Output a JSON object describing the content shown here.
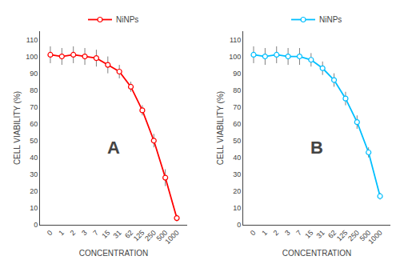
{
  "chart_data": [
    {
      "type": "line",
      "categories": [
        "0",
        "1",
        "2",
        "3",
        "7",
        "15",
        "31",
        "62",
        "125",
        "250",
        "500",
        "1000"
      ],
      "series": [
        {
          "name": "NiNPs",
          "color": "#ff0000",
          "marker": "circle",
          "values": [
            101,
            100,
            101,
            100,
            99,
            95,
            91,
            82,
            68,
            50,
            28,
            4
          ],
          "errors": [
            5,
            5,
            5,
            5,
            5,
            5,
            4,
            3,
            3,
            4,
            5,
            2
          ]
        }
      ],
      "xlabel": "CONCENTRATION",
      "ylabel": "CELL VIABILITY (%)",
      "ylim": [
        0,
        115
      ],
      "yticks": [
        0,
        10,
        20,
        30,
        40,
        50,
        60,
        70,
        80,
        90,
        100,
        110
      ],
      "grid": false,
      "legend": "top",
      "annotations": [
        {
          "text": "A"
        }
      ]
    },
    {
      "type": "line",
      "categories": [
        "0",
        "1",
        "2",
        "3",
        "7",
        "15",
        "31",
        "62",
        "125",
        "250",
        "500",
        "1000"
      ],
      "series": [
        {
          "name": "NiNPs",
          "color": "#00bfff",
          "marker": "circle",
          "values": [
            101,
            100,
            101,
            100,
            100,
            98,
            93,
            86,
            75,
            61,
            43,
            17
          ],
          "errors": [
            5,
            5,
            5,
            5,
            5,
            4,
            4,
            4,
            4,
            4,
            3,
            2
          ]
        }
      ],
      "xlabel": "CONCENTRATION",
      "ylabel": "CELL VIABILITY (%)",
      "ylim": [
        0,
        115
      ],
      "yticks": [
        0,
        10,
        20,
        30,
        40,
        50,
        60,
        70,
        80,
        90,
        100,
        110
      ],
      "grid": false,
      "legend": "top",
      "annotations": [
        {
          "text": "B"
        }
      ]
    }
  ]
}
